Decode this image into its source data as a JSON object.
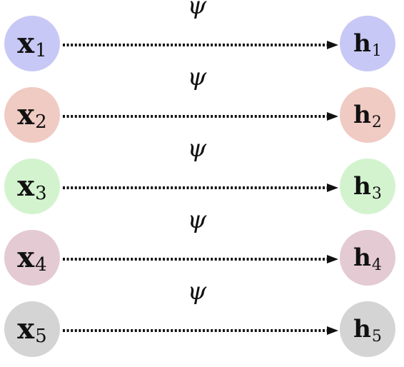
{
  "diagram": {
    "rows": [
      {
        "input": {
          "letter": "x",
          "sub": "1"
        },
        "output": {
          "letter": "h",
          "sub": "1"
        },
        "edge_label": "ψ",
        "color": "#c8c8f6"
      },
      {
        "input": {
          "letter": "x",
          "sub": "2"
        },
        "output": {
          "letter": "h",
          "sub": "2"
        },
        "edge_label": "ψ",
        "color": "#f0cbc3"
      },
      {
        "input": {
          "letter": "x",
          "sub": "3"
        },
        "output": {
          "letter": "h",
          "sub": "3"
        },
        "edge_label": "ψ",
        "color": "#d3f3cf"
      },
      {
        "input": {
          "letter": "x",
          "sub": "4"
        },
        "output": {
          "letter": "h",
          "sub": "4"
        },
        "edge_label": "ψ",
        "color": "#e4cad3"
      },
      {
        "input": {
          "letter": "x",
          "sub": "5"
        },
        "output": {
          "letter": "h",
          "sub": "5"
        },
        "edge_label": "ψ",
        "color": "#d4d4d4"
      }
    ],
    "edge_style": "dotted-arrow",
    "edge_color": "#111111"
  }
}
